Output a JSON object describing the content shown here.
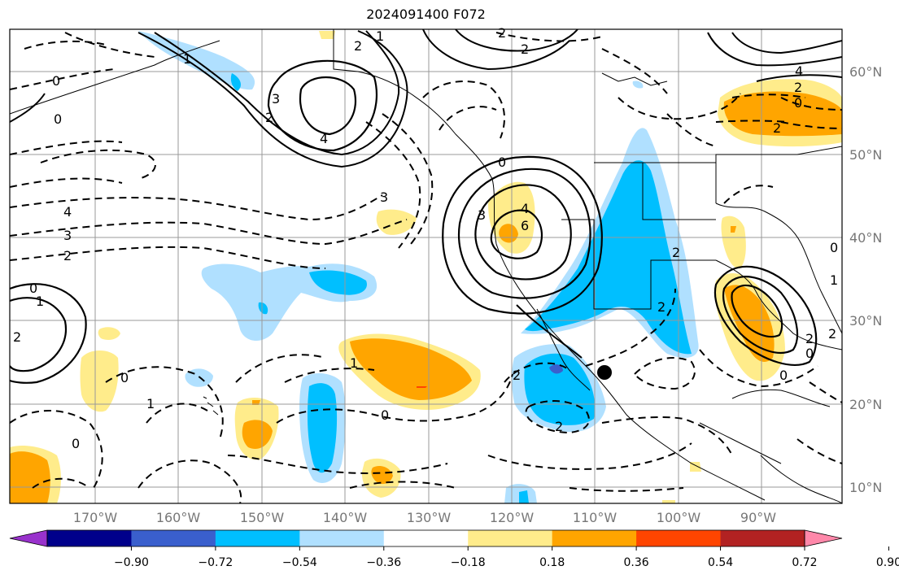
{
  "title": "2024091400 F072",
  "lon_labels": [
    "170°W",
    "160°W",
    "150°W",
    "140°W",
    "130°W",
    "120°W",
    "110°W",
    "100°W",
    "90°W"
  ],
  "lat_labels": [
    "60°N",
    "50°N",
    "40°N",
    "30°N",
    "20°N",
    "10°N"
  ],
  "colorbar": {
    "colors": [
      "#9932cc",
      "#00008b",
      "#3a5fcd",
      "#00bfff",
      "#b0e0ff",
      "#ffffff",
      "#ffec8b",
      "#ffa500",
      "#ff4500",
      "#b22222",
      "#ff88aa"
    ],
    "labels": [
      "−0.90",
      "−0.72",
      "−0.54",
      "−0.36",
      "−0.18",
      "0.18",
      "0.36",
      "0.54",
      "0.72",
      "0.90"
    ]
  },
  "contour_labels": [
    "1",
    "2",
    "0",
    "2",
    "0",
    "1",
    "2",
    "4",
    "3",
    "2",
    "4",
    "0",
    "2",
    "0",
    "2",
    "4",
    "6",
    "3",
    "3",
    "4",
    "3",
    "2",
    "0",
    "1",
    "2",
    "2",
    "0",
    "2",
    "1",
    "0",
    "1",
    "2",
    "0",
    "2",
    "2",
    "0",
    "1",
    "0",
    "0",
    "2"
  ],
  "colors": {
    "positive": "#ffa500",
    "positive_light": "#ffec8b",
    "negative": "#00bfff",
    "negative_light": "#b0e0ff",
    "marker": "#000000",
    "grid": "#999999"
  }
}
